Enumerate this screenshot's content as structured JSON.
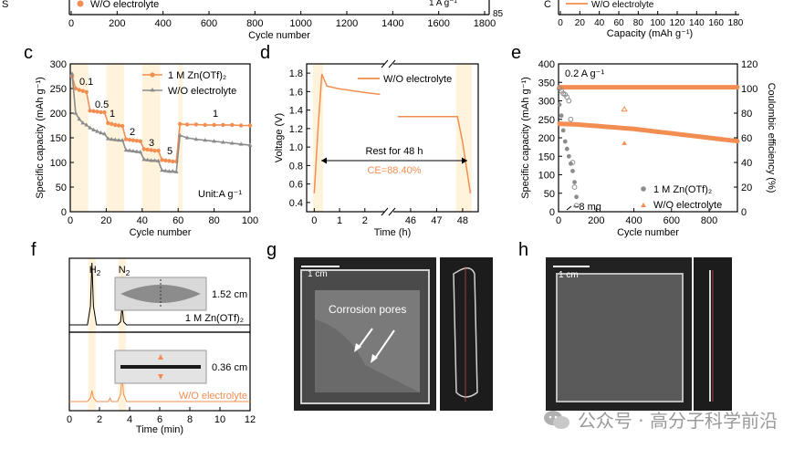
{
  "colors": {
    "orange": "#F28E52",
    "gray": "#8C8C8C",
    "band": "#FFF3DC",
    "axis": "#000000"
  },
  "top_strip": {
    "legend_left": "W/O electrolyte",
    "xlabel_left": "Cycle number",
    "xticks_left": [
      "0",
      "200",
      "400",
      "600",
      "800",
      "1000",
      "1200",
      "1400",
      "1600",
      "1800"
    ],
    "yright_tick_left": "85",
    "rate_label": "1 A g⁻¹",
    "legend_right": "W/O electrolyte",
    "xlabel_right": "Capacity (mAh g⁻¹)",
    "xticks_right": [
      "0",
      "20",
      "40",
      "60",
      "80",
      "100",
      "120",
      "140",
      "160",
      "180"
    ]
  },
  "panels": {
    "c": "c",
    "d": "d",
    "e": "e",
    "f": "f",
    "g": "g",
    "h": "h"
  },
  "images": {
    "g_scale": "1 cm",
    "g_caption": "Corrosion pores",
    "h_scale": "1 cm"
  },
  "watermark": "公众号 · 高分子科学前沿",
  "chart_data": [
    {
      "id": "c",
      "type": "line",
      "xlabel": "Cycle number",
      "ylabel": "Specific capacity (mAh g⁻¹)",
      "xlim": [
        0,
        100
      ],
      "ylim": [
        0,
        300
      ],
      "xticks": [
        0,
        20,
        40,
        60,
        80,
        100
      ],
      "yticks": [
        0,
        50,
        100,
        150,
        200,
        250,
        300
      ],
      "series": [
        {
          "name": "1 M Zn(OTf)₂",
          "x": [
            1,
            3,
            5,
            7,
            9,
            11,
            13,
            15,
            17,
            19,
            21,
            23,
            25,
            27,
            29,
            31,
            33,
            35,
            37,
            39,
            41,
            43,
            45,
            47,
            49,
            51,
            53,
            55,
            57,
            59,
            61,
            65,
            70,
            75,
            80,
            85,
            90,
            95,
            100
          ],
          "y": [
            275,
            250,
            247,
            245,
            243,
            205,
            204,
            203,
            202,
            202,
            180,
            178,
            176,
            175,
            174,
            147,
            146,
            145,
            144,
            143,
            127,
            126,
            125,
            124,
            124,
            105,
            104,
            103,
            102,
            102,
            178,
            177,
            177,
            176,
            176,
            176,
            176,
            175,
            175
          ]
        },
        {
          "name": "W/O electrolyte",
          "x": [
            1,
            3,
            5,
            7,
            9,
            11,
            13,
            15,
            17,
            19,
            21,
            23,
            25,
            27,
            29,
            31,
            33,
            35,
            37,
            39,
            41,
            43,
            45,
            47,
            49,
            51,
            53,
            55,
            57,
            59,
            61,
            65,
            70,
            75,
            80,
            85,
            90,
            95,
            100
          ],
          "y": [
            280,
            200,
            188,
            180,
            176,
            170,
            166,
            163,
            160,
            158,
            148,
            147,
            146,
            145,
            145,
            125,
            124,
            123,
            122,
            121,
            106,
            105,
            104,
            104,
            103,
            84,
            83,
            82,
            82,
            81,
            155,
            150,
            147,
            145,
            143,
            141,
            139,
            137,
            135
          ]
        }
      ],
      "annotations": [
        "0.1",
        "0.5",
        "1",
        "2",
        "3",
        "5",
        "1",
        "Unit:A g⁻¹"
      ],
      "legend": "top-right"
    },
    {
      "id": "d",
      "type": "line",
      "xlabel": "Time (h)",
      "ylabel": "Voltage (V)",
      "ylim": [
        0.3,
        1.9
      ],
      "xticks": [
        "0",
        "1",
        "2",
        "46",
        "47",
        "48"
      ],
      "yticks": [
        0.4,
        0.6,
        0.8,
        1.0,
        1.2,
        1.4,
        1.6,
        1.8
      ],
      "series": [
        {
          "name": "W/O electrolyte",
          "x": [
            0,
            0.15,
            0.3,
            0.5,
            1.0,
            1.5,
            2.0,
            2.6,
            45.5,
            46,
            47,
            47.8,
            48.0,
            48.3
          ],
          "y": [
            0.5,
            1.2,
            1.79,
            1.66,
            1.63,
            1.61,
            1.59,
            1.57,
            1.33,
            1.33,
            1.33,
            1.33,
            1.05,
            0.5
          ]
        }
      ],
      "annotations": [
        "Rest for 48 h",
        "CE=88.40%"
      ],
      "legend": "top-right"
    },
    {
      "id": "e",
      "type": "scatter",
      "xlabel": "Cycle number",
      "ylabel": "Specific capacity (mAh g⁻¹)",
      "ylabel_right": "Coulombic efficiency (%)",
      "xlim": [
        0,
        950
      ],
      "ylim": [
        0,
        400
      ],
      "ylim_right": [
        0,
        120
      ],
      "xticks": [
        0,
        200,
        400,
        600,
        800
      ],
      "yticks": [
        0,
        50,
        100,
        150,
        200,
        250,
        300,
        350,
        400
      ],
      "yticks_right": [
        0,
        20,
        40,
        60,
        80,
        100,
        120
      ],
      "series": [
        {
          "name": "1 M Zn(OTf)₂",
          "axis": "left",
          "x": [
            5,
            15,
            25,
            35,
            45,
            55,
            65,
            75,
            85,
            95
          ],
          "y": [
            290,
            260,
            220,
            190,
            170,
            150,
            130,
            110,
            80,
            40
          ]
        },
        {
          "name": "W/O electrolyte",
          "axis": "left",
          "x": [
            5,
            50,
            100,
            150,
            200,
            250,
            300,
            350,
            400,
            450,
            500,
            550,
            600,
            650,
            700,
            750,
            800,
            850,
            900,
            950
          ],
          "y": [
            238,
            237,
            236,
            234,
            232,
            230,
            228,
            226,
            224,
            221,
            218,
            215,
            212,
            209,
            206,
            203,
            200,
            197,
            194,
            191
          ]
        },
        {
          "name": "CE 1 M Zn(OTf)₂",
          "axis": "right",
          "x": [
            5,
            15,
            25,
            35,
            45,
            55,
            65,
            75,
            85,
            95
          ],
          "y": [
            100,
            98,
            96,
            95,
            93,
            90,
            75,
            40,
            20,
            5
          ]
        },
        {
          "name": "CE W/O electrolyte",
          "axis": "right",
          "x": [
            5,
            100,
            200,
            300,
            400,
            500,
            600,
            700,
            800,
            900,
            950
          ],
          "y": [
            101,
            101,
            101,
            101,
            101,
            101,
            101,
            101,
            101,
            101,
            101
          ]
        }
      ],
      "annotations": [
        "0.2 A g⁻¹",
        "~8 mg"
      ],
      "legend": "bottom-right"
    },
    {
      "id": "f",
      "type": "line",
      "xlabel": "Time (min)",
      "xlim": [
        0,
        12
      ],
      "xticks": [
        0,
        2,
        4,
        6,
        8,
        10,
        12
      ],
      "series": [
        {
          "name": "1 M Zn(OTf)₂",
          "x": [
            0,
            1.2,
            1.4,
            1.5,
            1.6,
            1.8,
            3.2,
            3.4,
            3.5,
            3.6,
            3.8,
            12
          ],
          "y": [
            0,
            0,
            0.3,
            1.0,
            0.3,
            0,
            0,
            0.05,
            0.3,
            0.05,
            0,
            0
          ]
        },
        {
          "name": "W/O electrolyte",
          "x": [
            0,
            1.2,
            1.4,
            1.5,
            1.6,
            1.8,
            2.6,
            2.7,
            2.8,
            3.2,
            3.4,
            3.5,
            3.6,
            3.8,
            12
          ],
          "y": [
            0,
            0,
            0.05,
            0.15,
            0.05,
            0,
            0,
            0.05,
            0,
            0,
            0.1,
            0.35,
            0.1,
            0,
            0
          ]
        }
      ],
      "annotations": [
        "H₂",
        "N₂",
        "1.52 cm",
        "0.36 cm",
        "1 M Zn(OTf)₂",
        "W/O electrolyte"
      ]
    }
  ]
}
